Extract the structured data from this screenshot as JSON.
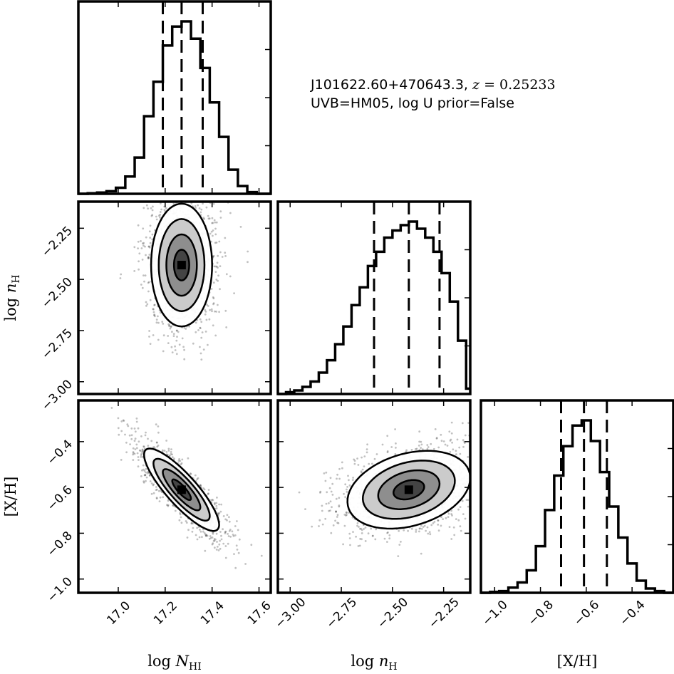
{
  "annotation": {
    "line1_object": "J101622.60+470643.3,",
    "line1_z_symbol": "z",
    "line1_z_value": "= 0.25233",
    "line2": "UVB=HM05, log U prior=False"
  },
  "chart_data": {
    "type": "corner",
    "parameters": [
      {
        "name": "logNHI",
        "label": "log N_HI",
        "range": [
          16.83,
          17.65
        ],
        "ticks": [
          "17.0",
          "17.2",
          "17.4",
          "17.6"
        ],
        "tick_values": [
          17.0,
          17.2,
          17.4,
          17.6
        ]
      },
      {
        "name": "lognH",
        "label": "log n_H",
        "range": [
          -3.06,
          -2.12
        ],
        "ticks": [
          "−3.00",
          "−2.75",
          "−2.50",
          "−2.25"
        ],
        "tick_values": [
          -3.0,
          -2.75,
          -2.5,
          -2.25
        ]
      },
      {
        "name": "XH",
        "label": "[X/H]",
        "range": [
          -1.06,
          -0.22
        ],
        "ticks": [
          "−1.0",
          "−0.8",
          "−0.6",
          "−0.4"
        ],
        "tick_values": [
          -1.0,
          -0.8,
          -0.6,
          -0.4
        ]
      }
    ],
    "axis_labels": {
      "logNHI": {
        "prefix": "log",
        "symbol": "N",
        "subscript": "HI"
      },
      "lognH": {
        "prefix": "log",
        "symbol": "n",
        "subscript": "H"
      },
      "XH": {
        "text": "[X/H]"
      }
    },
    "histograms": {
      "logNHI": {
        "bin_edges": [
          16.83,
          16.87,
          16.91,
          16.95,
          16.99,
          17.03,
          17.07,
          17.11,
          17.15,
          17.19,
          17.23,
          17.27,
          17.31,
          17.35,
          17.39,
          17.43,
          17.47,
          17.51,
          17.55,
          17.59,
          17.65
        ],
        "heights": [
          0.0,
          0.003,
          0.007,
          0.015,
          0.035,
          0.1,
          0.21,
          0.45,
          0.65,
          0.86,
          0.97,
          1.0,
          0.9,
          0.73,
          0.53,
          0.33,
          0.14,
          0.045,
          0.01,
          0.0
        ],
        "quantiles": [
          17.19,
          17.27,
          17.36
        ]
      },
      "lognH": {
        "bin_edges": [
          -3.06,
          -3.02,
          -2.98,
          -2.94,
          -2.9,
          -2.86,
          -2.82,
          -2.78,
          -2.74,
          -2.7,
          -2.66,
          -2.62,
          -2.58,
          -2.54,
          -2.5,
          -2.46,
          -2.42,
          -2.38,
          -2.34,
          -2.3,
          -2.26,
          -2.22,
          -2.18,
          -2.14,
          -2.12
        ],
        "heights": [
          0.0,
          0.01,
          0.02,
          0.04,
          0.07,
          0.12,
          0.19,
          0.28,
          0.38,
          0.5,
          0.6,
          0.72,
          0.8,
          0.88,
          0.92,
          0.95,
          0.97,
          0.93,
          0.88,
          0.8,
          0.68,
          0.52,
          0.3,
          0.03
        ],
        "quantiles": [
          -2.59,
          -2.42,
          -2.27
        ]
      },
      "XH": {
        "bin_edges": [
          -1.06,
          -1.02,
          -0.98,
          -0.94,
          -0.9,
          -0.86,
          -0.82,
          -0.78,
          -0.74,
          -0.7,
          -0.66,
          -0.62,
          -0.58,
          -0.54,
          -0.5,
          -0.46,
          -0.42,
          -0.38,
          -0.34,
          -0.3,
          -0.26,
          -0.22
        ],
        "heights": [
          0.0,
          0.005,
          0.01,
          0.03,
          0.06,
          0.13,
          0.27,
          0.48,
          0.68,
          0.85,
          0.97,
          1.0,
          0.88,
          0.7,
          0.5,
          0.32,
          0.17,
          0.07,
          0.025,
          0.01,
          0.0
        ],
        "quantiles": [
          -0.71,
          -0.61,
          -0.51
        ]
      }
    },
    "joint": [
      {
        "x": "logNHI",
        "y": "lognH",
        "mean": [
          17.27,
          -2.43
        ],
        "sigma": [
          0.065,
          0.15
        ],
        "corr": 0.0
      },
      {
        "x": "logNHI",
        "y": "XH",
        "mean": [
          17.27,
          -0.61
        ],
        "sigma": [
          0.08,
          0.09
        ],
        "corr": -0.85
      },
      {
        "x": "lognH",
        "y": "XH",
        "mean": [
          -2.42,
          -0.61
        ],
        "sigma": [
          0.15,
          0.085
        ],
        "corr": 0.3
      }
    ],
    "contour_levels_sigma": [
      0.5,
      1.0,
      1.5,
      2.0
    ],
    "grid": false,
    "colors": {
      "line": "#000000",
      "points": "#333333"
    }
  }
}
